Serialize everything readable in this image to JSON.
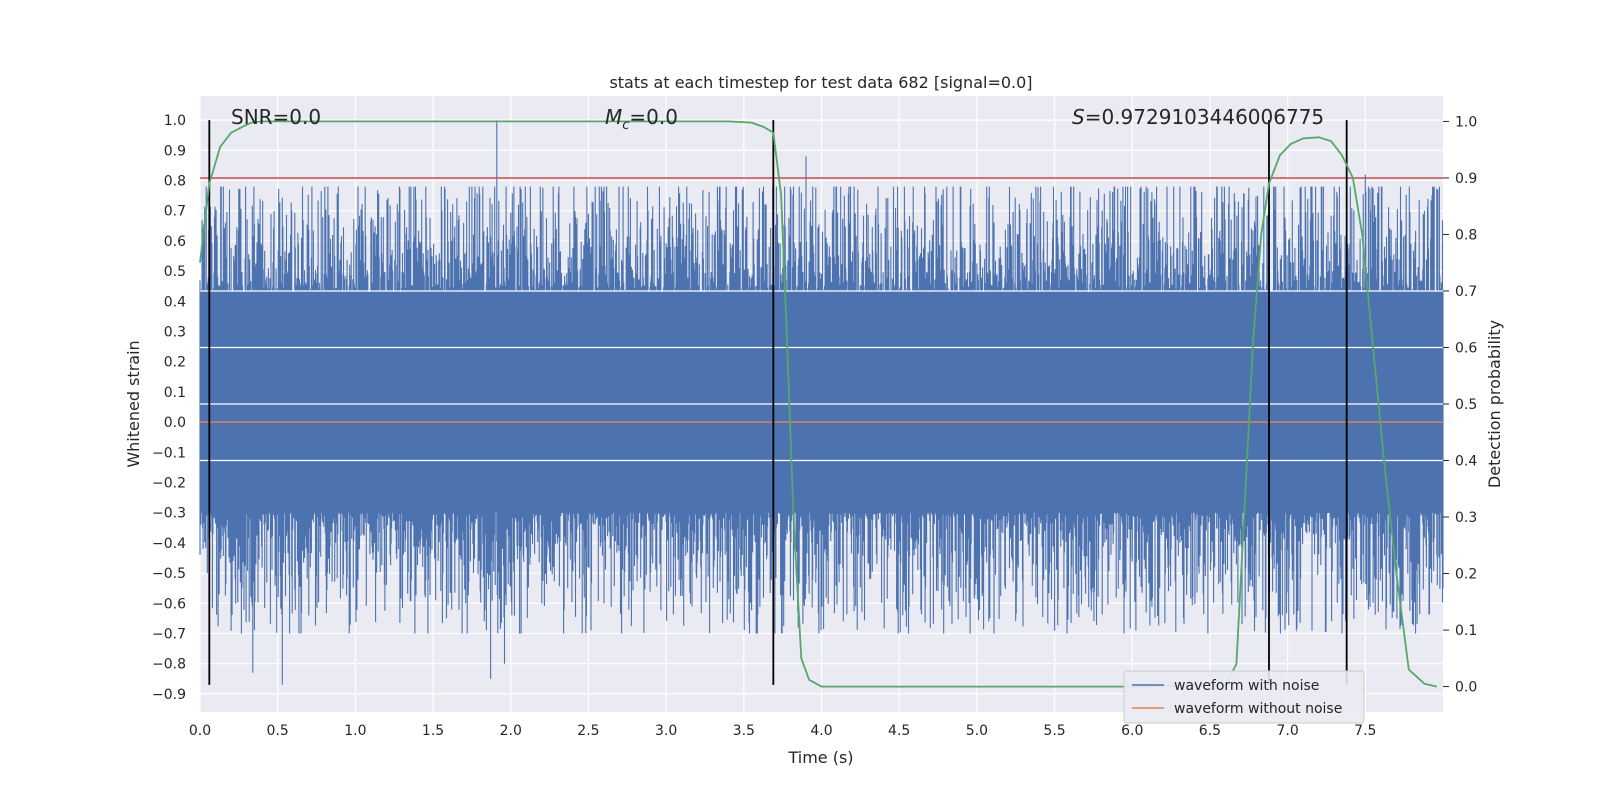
{
  "chart_data": {
    "type": "line",
    "title": "stats at each timestep for test data 682 [signal=0.0]",
    "xlabel": "Time (s)",
    "ylabel": "Whitened strain",
    "y2label": "Detection probability",
    "xlim": [
      0.0,
      8.0
    ],
    "ylim": [
      -0.96,
      1.08
    ],
    "y2lim": [
      -0.045,
      1.045
    ],
    "x_ticks": [
      0.0,
      0.5,
      1.0,
      1.5,
      2.0,
      2.5,
      3.0,
      3.5,
      4.0,
      4.5,
      5.0,
      5.5,
      6.0,
      6.5,
      7.0,
      7.5
    ],
    "x_tick_labels": [
      "0.0",
      "0.5",
      "1.0",
      "1.5",
      "2.0",
      "2.5",
      "3.0",
      "3.5",
      "4.0",
      "4.5",
      "5.0",
      "5.5",
      "6.0",
      "6.5",
      "7.0",
      "7.5"
    ],
    "y_ticks": [
      1.0,
      0.9,
      0.8,
      0.7,
      0.6,
      0.5,
      0.4,
      0.3,
      0.2,
      0.1,
      0.0,
      -0.1,
      -0.2,
      -0.3,
      -0.4,
      -0.5,
      -0.6,
      -0.7,
      -0.8,
      -0.9
    ],
    "y_tick_labels": [
      "1.0",
      "0.9",
      "0.8",
      "0.7",
      "0.6",
      "0.5",
      "0.4",
      "0.3",
      "0.2",
      "0.1",
      "0.0",
      "−0.1",
      "−0.2",
      "−0.3",
      "−0.4",
      "−0.5",
      "−0.6",
      "−0.7",
      "−0.8",
      "−0.9"
    ],
    "y2_ticks": [
      1.0,
      0.9,
      0.8,
      0.7,
      0.6,
      0.5,
      0.4,
      0.3,
      0.2,
      0.1,
      0.0
    ],
    "y2_tick_labels": [
      "1.0",
      "0.9",
      "0.8",
      "0.7",
      "0.6",
      "0.5",
      "0.4",
      "0.3",
      "0.2",
      "0.1",
      "0.0"
    ],
    "grid": true,
    "annotations": {
      "snr": "SNR=0.0",
      "mc_symbol": "M",
      "mc_sub": "c",
      "mc_value": "=0.0",
      "s_symbol": "S",
      "s_value": "=0.9729103446006775"
    },
    "threshold_probability": 0.9,
    "vertical_markers": [
      0.06,
      3.69,
      6.88,
      7.38
    ],
    "series": [
      {
        "name": "waveform with noise",
        "axis": "left",
        "color": "#4c72b0",
        "description_values": "dense noise between about -0.87 and 1.0, core band -0.3 to 0.43",
        "envelope": {
          "core_min": -0.3,
          "core_max": 0.43,
          "min": -0.87,
          "max": 1.0
        },
        "spikes": [
          [
            0.53,
            -0.87
          ],
          [
            1.91,
            1.0
          ],
          [
            7.38,
            1.0
          ],
          [
            0.34,
            -0.83
          ],
          [
            1.87,
            -0.85
          ],
          [
            1.96,
            -0.8
          ],
          [
            3.9,
            0.88
          ],
          [
            7.5,
            0.82
          ]
        ]
      },
      {
        "name": "waveform without noise",
        "axis": "left",
        "color": "#dd8452",
        "x": [
          0.0,
          8.0
        ],
        "y": [
          0.0,
          0.0
        ]
      },
      {
        "name": "detection probability",
        "axis": "right",
        "color": "#55a868",
        "x": [
          0.0,
          0.06,
          0.13,
          0.2,
          0.27,
          0.33,
          0.4,
          0.5,
          1.0,
          2.0,
          3.0,
          3.4,
          3.55,
          3.63,
          3.69,
          3.74,
          3.78,
          3.82,
          3.87,
          3.92,
          4.0,
          5.0,
          6.0,
          6.6,
          6.67,
          6.72,
          6.78,
          6.83,
          6.88,
          6.95,
          7.02,
          7.1,
          7.2,
          7.28,
          7.35,
          7.42,
          7.48,
          7.55,
          7.62,
          7.7,
          7.78,
          7.88,
          7.96
        ],
        "y": [
          0.75,
          0.89,
          0.955,
          0.98,
          0.99,
          0.998,
          1.0,
          1.0,
          1.0,
          1.0,
          1.0,
          1.0,
          0.998,
          0.99,
          0.98,
          0.87,
          0.6,
          0.3,
          0.05,
          0.012,
          0.0,
          0.0,
          0.0,
          0.003,
          0.04,
          0.3,
          0.62,
          0.8,
          0.89,
          0.94,
          0.96,
          0.97,
          0.972,
          0.965,
          0.94,
          0.9,
          0.8,
          0.6,
          0.4,
          0.2,
          0.03,
          0.005,
          0.0
        ]
      }
    ],
    "threshold_color": "#c44e52",
    "legend": {
      "placement": "bottom-right",
      "entries": [
        "waveform with noise",
        "waveform without noise"
      ]
    }
  }
}
